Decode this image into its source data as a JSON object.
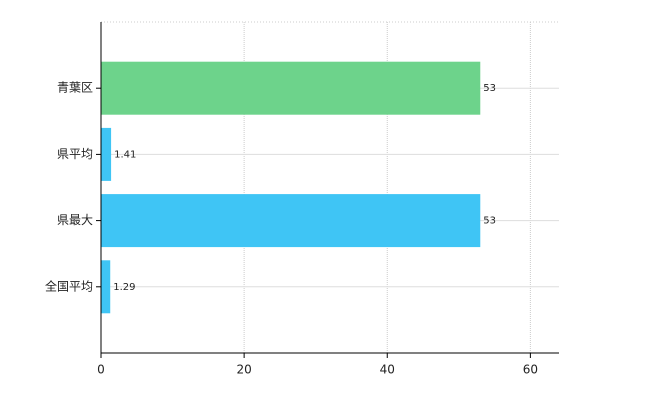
{
  "chart_data": {
    "type": "hbar",
    "categories": [
      "青葉区",
      "県平均",
      "県最大",
      "全国平均"
    ],
    "values": [
      53,
      1.41,
      53,
      1.29
    ],
    "colors": [
      "#6dd38b",
      "#3fc5f5",
      "#3fc5f5",
      "#3fc5f5"
    ],
    "xlim": [
      0,
      64
    ],
    "xticks": [
      0,
      20,
      40,
      60
    ],
    "grid": true
  }
}
